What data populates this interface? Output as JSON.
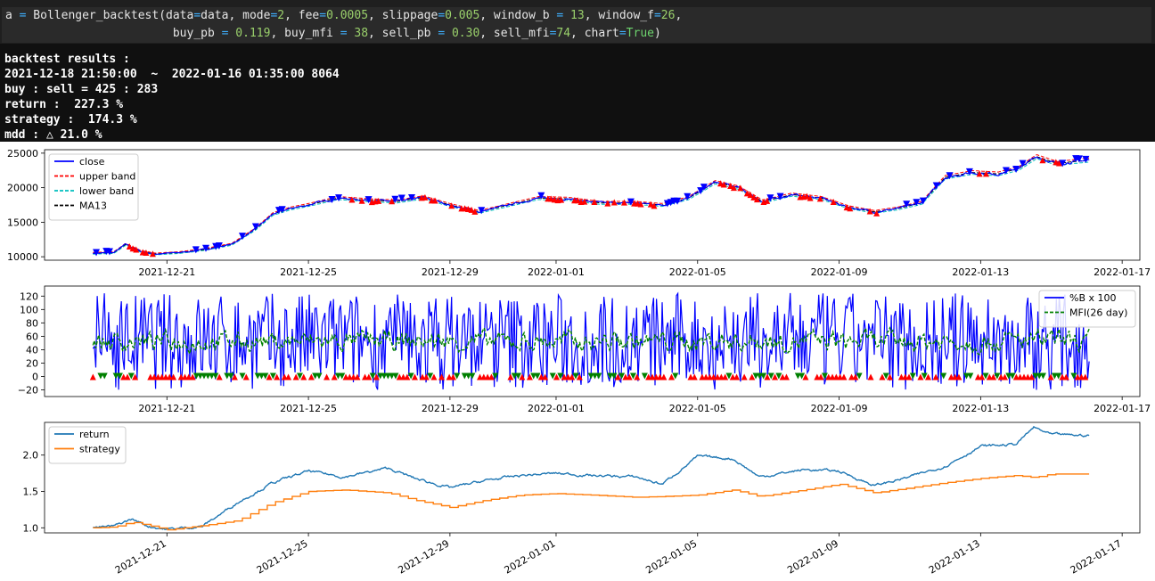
{
  "code": {
    "line1": [
      {
        "t": "a ",
        "c": "kw"
      },
      {
        "t": "=",
        "c": "op"
      },
      {
        "t": " Bollenger_backtest(data",
        "c": "kw"
      },
      {
        "t": "=",
        "c": "op"
      },
      {
        "t": "data, mode",
        "c": "kw"
      },
      {
        "t": "=",
        "c": "op"
      },
      {
        "t": "2",
        "c": "num"
      },
      {
        "t": ", fee",
        "c": "kw"
      },
      {
        "t": "=",
        "c": "op"
      },
      {
        "t": "0.0005",
        "c": "num"
      },
      {
        "t": ", slippage",
        "c": "kw"
      },
      {
        "t": "=",
        "c": "op"
      },
      {
        "t": "0.005",
        "c": "num"
      },
      {
        "t": ", window_b ",
        "c": "kw"
      },
      {
        "t": "=",
        "c": "op"
      },
      {
        "t": " 13",
        "c": "num"
      },
      {
        "t": ", window_f",
        "c": "kw"
      },
      {
        "t": "=",
        "c": "op"
      },
      {
        "t": "26",
        "c": "num"
      },
      {
        "t": ",",
        "c": "kw"
      }
    ],
    "line2": [
      {
        "t": "                        buy_pb ",
        "c": "kw"
      },
      {
        "t": "=",
        "c": "op"
      },
      {
        "t": " 0.119",
        "c": "num"
      },
      {
        "t": ", buy_mfi ",
        "c": "kw"
      },
      {
        "t": "=",
        "c": "op"
      },
      {
        "t": " 38",
        "c": "num"
      },
      {
        "t": ", sell_pb ",
        "c": "kw"
      },
      {
        "t": "=",
        "c": "op"
      },
      {
        "t": " 0.30",
        "c": "num"
      },
      {
        "t": ", sell_mfi",
        "c": "kw"
      },
      {
        "t": "=",
        "c": "op"
      },
      {
        "t": "74",
        "c": "num"
      },
      {
        "t": ", chart",
        "c": "kw"
      },
      {
        "t": "=",
        "c": "op"
      },
      {
        "t": "True",
        "c": "bool"
      },
      {
        "t": ")",
        "c": "kw"
      }
    ]
  },
  "output": {
    "lines": [
      "backtest results :",
      "2021-12-18 21:50:00  ~  2022-01-16 01:35:00 8064",
      "buy : sell = 425 : 283",
      "return :  227.3 %",
      "strategy :  174.3 %",
      "mdd : △ 21.0 %"
    ]
  },
  "colors": {
    "close": "#0000ff",
    "upper": "#ff0000",
    "lower": "#00bfbf",
    "ma": "#000000",
    "pb": "#0000ff",
    "mfi": "#008000",
    "buy": "#ff0000",
    "sell": "#0000ff",
    "ret": "#1f77b4",
    "strategy": "#ff7f0e"
  },
  "x_ticks": [
    "2021-12-21",
    "2021-12-25",
    "2021-12-29",
    "2022-01-01",
    "2022-01-05",
    "2022-01-09",
    "2022-01-13",
    "2022-01-17"
  ],
  "chart_data": [
    {
      "type": "line",
      "x_range": [
        "2021-12-18 21:50:00",
        "2022-01-16 01:35:00"
      ],
      "ylim": [
        9500,
        25500
      ],
      "yticks": [
        10000,
        15000,
        20000,
        25000
      ],
      "legend": [
        "close",
        "upper band",
        "lower band",
        "MA13"
      ],
      "legend_position": "upper left",
      "markers": "buy ▲ red / sell ▼ blue",
      "x": [
        "2021-12-18 21:50",
        "2021-12-19 12:00",
        "2021-12-19 20:00",
        "2021-12-20 06:00",
        "2021-12-20 16:00",
        "2021-12-21 08:00",
        "2021-12-22 00:00",
        "2021-12-22 20:00",
        "2021-12-23 12:00",
        "2021-12-24 00:00",
        "2021-12-24 12:00",
        "2021-12-25 00:00",
        "2021-12-25 20:00",
        "2021-12-26 16:00",
        "2021-12-27 12:00",
        "2021-12-28 06:00",
        "2021-12-29 00:00",
        "2021-12-29 20:00",
        "2021-12-30 16:00",
        "2021-12-31 12:00",
        "2022-01-01 08:00",
        "2022-01-02 06:00",
        "2022-01-03 06:00",
        "2022-01-04 00:00",
        "2022-01-04 18:00",
        "2022-01-05 12:00",
        "2022-01-06 04:00",
        "2022-01-06 20:00",
        "2022-01-07 16:00",
        "2022-01-08 12:00",
        "2022-01-09 06:00",
        "2022-01-10 00:00",
        "2022-01-10 16:00",
        "2022-01-11 08:00",
        "2022-01-12 00:00",
        "2022-01-12 18:00",
        "2022-01-13 12:00",
        "2022-01-14 02:00",
        "2022-01-14 14:00",
        "2022-01-15 04:00",
        "2022-01-15 16:00",
        "2022-01-16 01:35"
      ],
      "close": [
        10500,
        10600,
        11800,
        10800,
        10400,
        10600,
        11000,
        11800,
        14000,
        16200,
        17000,
        17500,
        18500,
        18200,
        18000,
        18600,
        17500,
        16500,
        17500,
        18500,
        18400,
        17800,
        17800,
        17500,
        18500,
        20800,
        20000,
        18000,
        19000,
        18500,
        17200,
        16500,
        17000,
        17800,
        21500,
        22200,
        22000,
        22800,
        24500,
        23500,
        23800,
        24000
      ]
    },
    {
      "type": "line",
      "x_range": [
        "2021-12-18 21:50:00",
        "2022-01-16 01:35:00"
      ],
      "ylim": [
        -30,
        135
      ],
      "yticks": [
        -20,
        0,
        20,
        40,
        60,
        80,
        100,
        120
      ],
      "legend": [
        "%B x 100",
        "MFI(26 day)"
      ],
      "legend_position": "upper right",
      "pb_oscillation_range": [
        -25,
        125
      ],
      "mfi_oscillation_range": [
        20,
        80
      ]
    },
    {
      "type": "line",
      "x_range": [
        "2021-12-18 21:50:00",
        "2022-01-16 01:35:00"
      ],
      "ylim": [
        0.93,
        2.45
      ],
      "yticks": [
        1.0,
        1.5,
        2.0
      ],
      "legend": [
        "return",
        "strategy"
      ],
      "legend_position": "upper left",
      "x": [
        "2021-12-18 21:50",
        "2021-12-19 12:00",
        "2021-12-20 00:00",
        "2021-12-20 12:00",
        "2021-12-21 00:00",
        "2021-12-22 00:00",
        "2021-12-23 00:00",
        "2021-12-24 00:00",
        "2021-12-25 00:00",
        "2021-12-26 00:00",
        "2021-12-27 06:00",
        "2021-12-28 00:00",
        "2021-12-29 00:00",
        "2021-12-30 00:00",
        "2021-12-31 00:00",
        "2022-01-01 00:00",
        "2022-01-02 00:00",
        "2022-01-03 06:00",
        "2022-01-04 00:00",
        "2022-01-05 00:00",
        "2022-01-06 00:00",
        "2022-01-06 18:00",
        "2022-01-08 00:00",
        "2022-01-09 00:00",
        "2022-01-10 00:00",
        "2022-01-11 00:00",
        "2022-01-12 00:00",
        "2022-01-13 00:00",
        "2022-01-14 00:00",
        "2022-01-14 12:00",
        "2022-01-15 00:00",
        "2022-01-16 01:35"
      ],
      "return": [
        1.0,
        1.02,
        1.12,
        1.02,
        0.98,
        1.02,
        1.35,
        1.62,
        1.78,
        1.7,
        1.82,
        1.68,
        1.55,
        1.65,
        1.72,
        1.75,
        1.72,
        1.7,
        1.6,
        1.98,
        1.95,
        1.7,
        1.8,
        1.78,
        1.58,
        1.7,
        1.85,
        2.12,
        2.15,
        2.38,
        2.28,
        2.27
      ],
      "strategy": [
        1.0,
        1.01,
        1.08,
        1.03,
        0.97,
        1.03,
        1.1,
        1.35,
        1.5,
        1.52,
        1.48,
        1.38,
        1.28,
        1.38,
        1.45,
        1.47,
        1.45,
        1.42,
        1.43,
        1.45,
        1.52,
        1.43,
        1.52,
        1.6,
        1.48,
        1.55,
        1.62,
        1.68,
        1.72,
        1.69,
        1.74,
        1.74
      ]
    }
  ]
}
